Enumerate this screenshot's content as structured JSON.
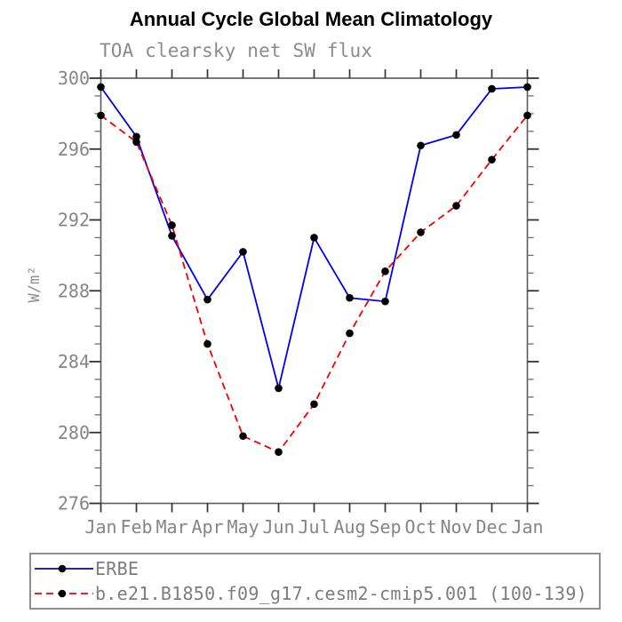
{
  "header": {
    "title": "Annual Cycle Global Mean Climatology",
    "subtitle": "TOA clearsky net SW flux"
  },
  "axes": {
    "y_title": "W/m²",
    "x_tick_labels": [
      "Jan",
      "Feb",
      "Mar",
      "Apr",
      "May",
      "Jun",
      "Jul",
      "Aug",
      "Sep",
      "Oct",
      "Nov",
      "Dec",
      "Jan"
    ],
    "y_tick_labels": [
      "300",
      "296",
      "292",
      "288",
      "284",
      "280",
      "276"
    ]
  },
  "legend": {
    "items": [
      {
        "label": "ERBE"
      },
      {
        "label": "b.e21.B1850.f09_g17.cesm2-cmip5.001 (100-139)"
      }
    ]
  },
  "colors": {
    "title": "#000000",
    "gray_text": "#858585",
    "axis_box": "#5a5a5a",
    "major_tick": "#333333",
    "minor_tick": "#6e6e6e",
    "marker": "#000000",
    "erbe_blue": "#0000f0",
    "model_red": "#f50000",
    "legend_border": "#8f8f8f"
  },
  "chart_data": {
    "type": "line",
    "title": "Annual Cycle Global Mean Climatology",
    "subtitle": "TOA clearsky net SW flux",
    "xlabel": "",
    "ylabel": "W/m²",
    "categories": [
      "Jan",
      "Feb",
      "Mar",
      "Apr",
      "May",
      "Jun",
      "Jul",
      "Aug",
      "Sep",
      "Oct",
      "Nov",
      "Dec",
      "Jan"
    ],
    "series": [
      {
        "name": "ERBE",
        "color": "#0000f0",
        "style": "solid",
        "marker": "circle",
        "values": [
          299.5,
          296.7,
          291.1,
          287.5,
          290.2,
          282.5,
          291.0,
          287.6,
          287.4,
          296.2,
          296.8,
          299.4,
          299.5
        ]
      },
      {
        "name": "b.e21.B1850.f09_g17.cesm2-cmip5.001 (100-139)",
        "color": "#f50000",
        "style": "dashed",
        "marker": "circle",
        "values": [
          297.9,
          296.4,
          291.7,
          285.0,
          279.8,
          278.9,
          281.6,
          285.6,
          289.1,
          291.3,
          292.8,
          295.4,
          297.9
        ]
      }
    ],
    "ylim": [
      276,
      300
    ],
    "yticks": [
      300,
      296,
      292,
      288,
      284,
      280,
      276
    ],
    "ytick_minor_step": 1,
    "grid": false,
    "legend_position": "bottom-left-box"
  }
}
